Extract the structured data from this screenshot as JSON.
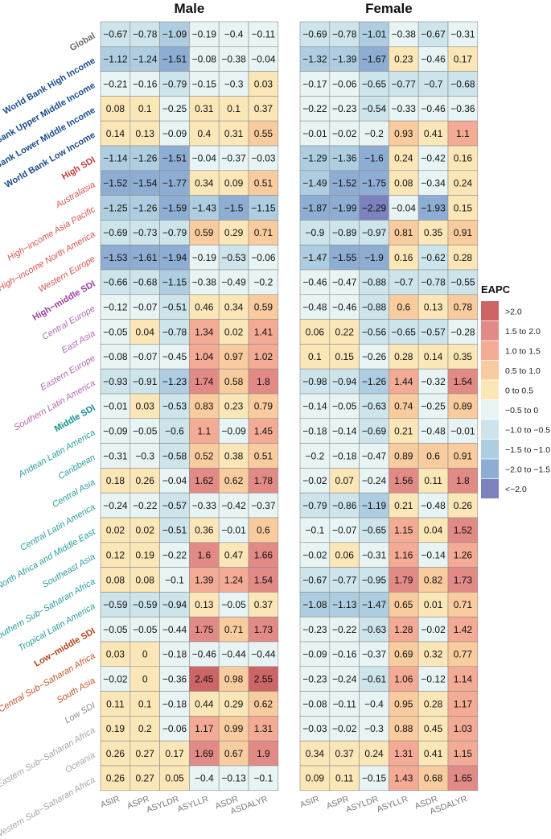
{
  "chart_data": {
    "type": "heatmap",
    "panels": [
      {
        "title": "Male",
        "values": [
          [
            -0.67,
            -0.78,
            -1.09,
            -0.19,
            -0.4,
            -0.11
          ],
          [
            -1.12,
            -1.24,
            -1.51,
            -0.08,
            -0.38,
            -0.04
          ],
          [
            -0.21,
            -0.16,
            -0.79,
            -0.15,
            -0.3,
            0.03
          ],
          [
            0.08,
            0.1,
            -0.25,
            0.31,
            0.1,
            0.37
          ],
          [
            0.14,
            0.13,
            -0.09,
            0.4,
            0.31,
            0.55
          ],
          [
            -1.14,
            -1.26,
            -1.51,
            -0.04,
            -0.37,
            -0.03
          ],
          [
            -1.52,
            -1.54,
            -1.77,
            0.34,
            0.09,
            0.51
          ],
          [
            -1.25,
            -1.26,
            -1.59,
            -1.43,
            -1.5,
            -1.15
          ],
          [
            -0.69,
            -0.73,
            -0.79,
            0.59,
            0.29,
            0.71
          ],
          [
            -1.53,
            -1.61,
            -1.94,
            -0.19,
            -0.53,
            -0.06
          ],
          [
            -0.66,
            -0.68,
            -1.15,
            -0.38,
            -0.49,
            -0.2
          ],
          [
            -0.12,
            -0.07,
            -0.51,
            0.46,
            0.34,
            0.59
          ],
          [
            -0.05,
            0.04,
            -0.78,
            1.34,
            0.02,
            1.41
          ],
          [
            -0.08,
            -0.07,
            -0.45,
            1.04,
            0.97,
            1.02
          ],
          [
            -0.93,
            -0.91,
            -1.23,
            1.74,
            0.58,
            1.8
          ],
          [
            -0.01,
            0.03,
            -0.53,
            0.83,
            0.23,
            0.79
          ],
          [
            -0.09,
            -0.05,
            -0.6,
            1.1,
            -0.09,
            1.45
          ],
          [
            -0.31,
            -0.3,
            -0.58,
            0.52,
            0.38,
            0.51
          ],
          [
            0.18,
            0.26,
            -0.04,
            1.62,
            0.62,
            1.78
          ],
          [
            -0.24,
            -0.22,
            -0.57,
            -0.33,
            -0.42,
            -0.37
          ],
          [
            0.02,
            0.02,
            -0.51,
            0.36,
            -0.01,
            0.6
          ],
          [
            0.12,
            0.19,
            -0.22,
            1.6,
            0.47,
            1.66
          ],
          [
            0.08,
            0.08,
            -0.1,
            1.39,
            1.24,
            1.54
          ],
          [
            -0.59,
            -0.59,
            -0.94,
            0.13,
            -0.05,
            0.37
          ],
          [
            -0.05,
            -0.05,
            -0.44,
            1.75,
            0.71,
            1.73
          ],
          [
            0.03,
            0,
            -0.18,
            -0.46,
            -0.44,
            -0.44
          ],
          [
            -0.02,
            0,
            -0.36,
            2.45,
            0.98,
            2.55
          ],
          [
            0.11,
            0.1,
            -0.18,
            0.44,
            0.29,
            0.62
          ],
          [
            0.19,
            0.2,
            -0.06,
            1.17,
            0.99,
            1.31
          ],
          [
            0.26,
            0.27,
            0.17,
            1.69,
            0.67,
            1.9
          ],
          [
            0.26,
            0.27,
            0.05,
            -0.4,
            -0.13,
            -0.1
          ]
        ]
      },
      {
        "title": "Female",
        "values": [
          [
            -0.69,
            -0.78,
            -1.01,
            -0.38,
            -0.67,
            -0.31
          ],
          [
            -1.32,
            -1.39,
            -1.67,
            0.23,
            -0.46,
            0.17
          ],
          [
            -0.17,
            -0.06,
            -0.65,
            -0.77,
            -0.7,
            -0.68
          ],
          [
            -0.22,
            -0.23,
            -0.54,
            -0.33,
            -0.46,
            -0.36
          ],
          [
            -0.01,
            -0.02,
            -0.2,
            0.93,
            0.41,
            1.1
          ],
          [
            -1.29,
            -1.36,
            -1.6,
            0.24,
            -0.42,
            0.16
          ],
          [
            -1.49,
            -1.52,
            -1.75,
            0.08,
            -0.34,
            0.24
          ],
          [
            -1.87,
            -1.99,
            -2.29,
            -0.04,
            -1.93,
            0.15
          ],
          [
            -0.9,
            -0.89,
            -0.97,
            0.81,
            0.35,
            0.91
          ],
          [
            -1.47,
            -1.55,
            -1.9,
            0.16,
            -0.62,
            0.28
          ],
          [
            -0.46,
            -0.47,
            -0.88,
            -0.7,
            -0.78,
            -0.55
          ],
          [
            -0.48,
            -0.46,
            -0.88,
            0.6,
            0.13,
            0.78
          ],
          [
            0.06,
            0.22,
            -0.56,
            -0.65,
            -0.57,
            -0.28
          ],
          [
            0.1,
            0.15,
            -0.26,
            0.28,
            0.14,
            0.35
          ],
          [
            -0.98,
            -0.94,
            -1.26,
            1.44,
            -0.32,
            1.54
          ],
          [
            -0.14,
            -0.05,
            -0.63,
            0.74,
            -0.25,
            0.89
          ],
          [
            -0.18,
            -0.14,
            -0.69,
            0.21,
            -0.48,
            -0.01
          ],
          [
            -0.2,
            -0.18,
            -0.47,
            0.89,
            0.6,
            0.91
          ],
          [
            -0.02,
            0.07,
            -0.24,
            1.56,
            0.11,
            1.8
          ],
          [
            -0.79,
            -0.86,
            -1.19,
            0.21,
            -0.48,
            0.26
          ],
          [
            -0.1,
            -0.07,
            -0.65,
            1.15,
            0.04,
            1.52
          ],
          [
            -0.02,
            0.06,
            -0.31,
            1.16,
            -0.14,
            1.26
          ],
          [
            -0.67,
            -0.77,
            -0.95,
            1.79,
            0.82,
            1.73
          ],
          [
            -1.08,
            -1.13,
            -1.47,
            0.65,
            0.01,
            0.71
          ],
          [
            -0.23,
            -0.22,
            -0.63,
            1.28,
            -0.02,
            1.42
          ],
          [
            -0.09,
            -0.16,
            -0.37,
            0.69,
            0.32,
            0.77
          ],
          [
            -0.23,
            -0.24,
            -0.61,
            1.06,
            -0.12,
            1.14
          ],
          [
            -0.08,
            -0.11,
            -0.4,
            0.95,
            0.28,
            1.17
          ],
          [
            -0.03,
            -0.02,
            -0.3,
            0.88,
            0.45,
            1.03
          ],
          [
            0.34,
            0.37,
            0.24,
            1.31,
            0.41,
            1.15
          ],
          [
            0.09,
            0.11,
            -0.15,
            1.43,
            0.68,
            1.65
          ]
        ]
      }
    ],
    "columns": [
      "ASIR",
      "ASPR",
      "ASYLDR",
      "ASYLLR",
      "ASDR",
      "ASDALYR"
    ],
    "rows": [
      {
        "label": "Global",
        "color": "#6b6b6b",
        "bold": true
      },
      {
        "label": "World Bank High Income",
        "color": "#1a4d8f",
        "bold": true
      },
      {
        "label": "World Bank Upper Middle Income",
        "color": "#1a4d8f",
        "bold": true
      },
      {
        "label": "World Bank Lower Middle Income",
        "color": "#1a4d8f",
        "bold": true
      },
      {
        "label": "World Bank Low Income",
        "color": "#1a4d8f",
        "bold": true
      },
      {
        "label": "High SDI",
        "color": "#c23b3b",
        "bold": true
      },
      {
        "label": "Australasia",
        "color": "#d9534f",
        "bold": false
      },
      {
        "label": "High−income Asia Pacific",
        "color": "#d9534f",
        "bold": false
      },
      {
        "label": "High−income North America",
        "color": "#d9534f",
        "bold": false
      },
      {
        "label": "Western Europe",
        "color": "#d9534f",
        "bold": false
      },
      {
        "label": "High−middle SDI",
        "color": "#9b3fa0",
        "bold": true
      },
      {
        "label": "Central Europe",
        "color": "#b06ab3",
        "bold": false
      },
      {
        "label": "East Asia",
        "color": "#b06ab3",
        "bold": false
      },
      {
        "label": "Eastern Europe",
        "color": "#b06ab3",
        "bold": false
      },
      {
        "label": "Southern Latin America",
        "color": "#b06ab3",
        "bold": false
      },
      {
        "label": "Middle SDI",
        "color": "#138f8f",
        "bold": true
      },
      {
        "label": "Andean Latin America",
        "color": "#2a9d9d",
        "bold": false
      },
      {
        "label": "Caribbean",
        "color": "#2a9d9d",
        "bold": false
      },
      {
        "label": "Central Asia",
        "color": "#2a9d9d",
        "bold": false
      },
      {
        "label": "Central Latin America",
        "color": "#2a9d9d",
        "bold": false
      },
      {
        "label": "North Africa and Middle East",
        "color": "#2a9d9d",
        "bold": false
      },
      {
        "label": "Southeast Asia",
        "color": "#2a9d9d",
        "bold": false
      },
      {
        "label": "Southern Sub−Saharan Africa",
        "color": "#2a9d9d",
        "bold": false
      },
      {
        "label": "Tropical Latin America",
        "color": "#2a9d9d",
        "bold": false
      },
      {
        "label": "Low−middle SDI",
        "color": "#b5451b",
        "bold": true
      },
      {
        "label": "Central Sub−Saharan Africa",
        "color": "#c0562a",
        "bold": false
      },
      {
        "label": "South Asia",
        "color": "#c0562a",
        "bold": false
      },
      {
        "label": "Low SDI",
        "color": "#8c8c8c",
        "bold": false
      },
      {
        "label": "Eastern Sub−Saharan Africa",
        "color": "#a6a6a6",
        "bold": false
      },
      {
        "label": "Oceania",
        "color": "#a6a6a6",
        "bold": false
      },
      {
        "label": "Western Sub−Saharan Africa",
        "color": "#a6a6a6",
        "bold": false
      }
    ],
    "legend": {
      "title": "EAPC",
      "position": "right",
      "bins": [
        {
          "label": ">2.0",
          "color": "#cd6466"
        },
        {
          "label": "1.5 to 2.0",
          "color": "#e28a86"
        },
        {
          "label": "1.0 to 1.5",
          "color": "#f3ab95"
        },
        {
          "label": "0.5 to 1.0",
          "color": "#f8cc9e"
        },
        {
          "label": "0 to 0.5",
          "color": "#fbe6b8"
        },
        {
          "label": "−0.5 to 0",
          "color": "#e8f4f4"
        },
        {
          "label": "−1.0 to −0.5",
          "color": "#cde4eb"
        },
        {
          "label": "−1.5 to −1.0",
          "color": "#aecde0"
        },
        {
          "label": "−2.0 to −1.5",
          "color": "#8eadd2"
        },
        {
          "label": "<−2.0",
          "color": "#7b82be"
        }
      ]
    }
  }
}
